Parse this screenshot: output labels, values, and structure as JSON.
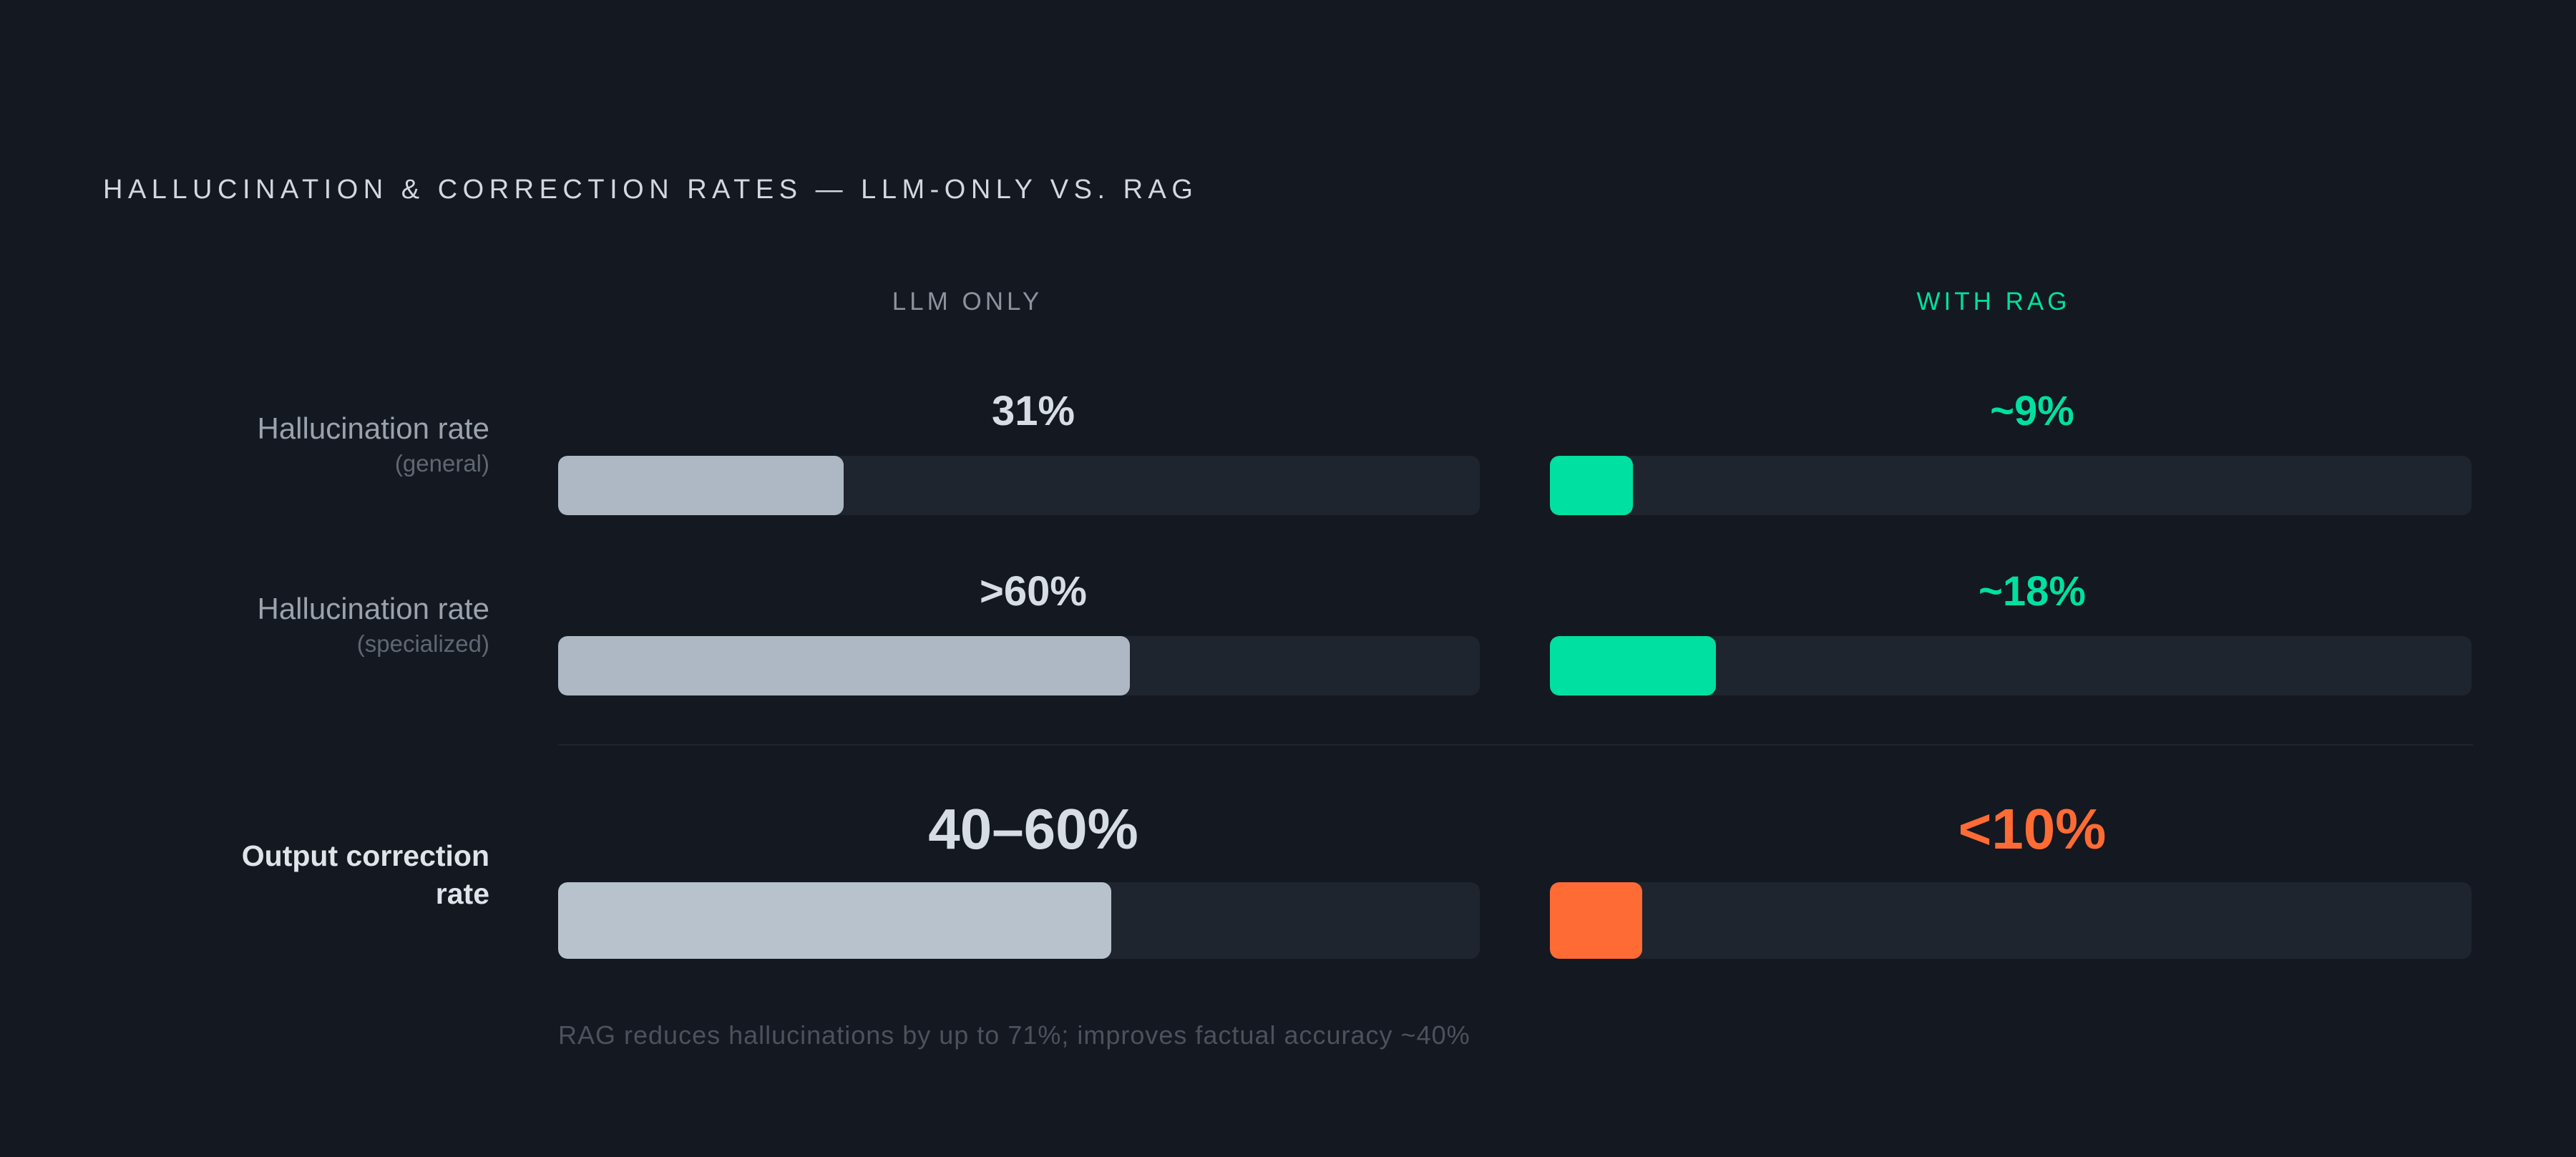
{
  "title": "HALLUCINATION & CORRECTION RATES — LLM-ONLY VS. RAG",
  "footnote": "RAG reduces hallucinations by up to 71%; improves factual accuracy ~40%",
  "colors": {
    "llm_bar_light": "#adb8c4",
    "llm_bar_correction": "#b8c2cd",
    "rag_accent": "#00e0a0",
    "correction_accent": "#ff6b35",
    "track": "#1f252e",
    "background": "#141820"
  },
  "chart_data": {
    "type": "bar",
    "orientation": "horizontal",
    "title": "HALLUCINATION & CORRECTION RATES — LLM-ONLY VS. RAG",
    "xlim": [
      0,
      100
    ],
    "grid": false,
    "series": [
      {
        "name": "LLM ONLY",
        "values": [
          31,
          62,
          60
        ]
      },
      {
        "name": "WITH RAG",
        "values": [
          9,
          18,
          10
        ]
      }
    ],
    "categories": [
      {
        "label": "Hallucination rate",
        "sublabel": "(general)",
        "emphasis": false
      },
      {
        "label": "Hallucination rate",
        "sublabel": "(specialized)",
        "emphasis": false
      },
      {
        "label": "Output correction rate",
        "sublabel": "",
        "emphasis": true
      }
    ],
    "value_labels": [
      [
        "31%",
        "~9%"
      ],
      [
        ">60%",
        "~18%"
      ],
      [
        "40–60%",
        "<10%"
      ]
    ]
  }
}
